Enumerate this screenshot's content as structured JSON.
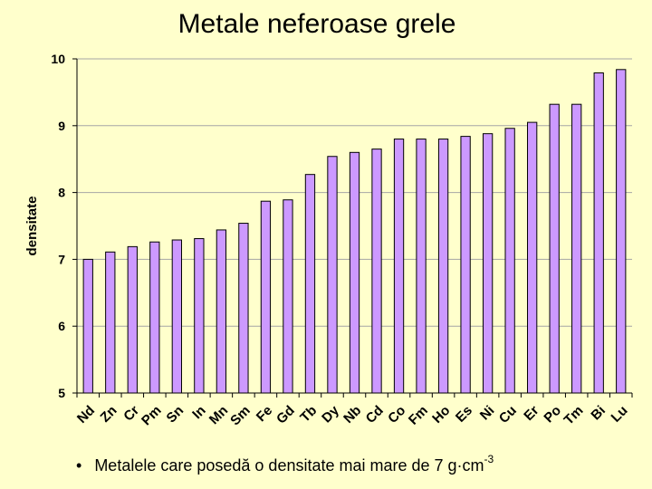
{
  "slide": {
    "title": "Metale neferoase grele",
    "bullet_symbol": "•",
    "bullet_text": "Metalele care posedă o densitate mai mare de 7 g·cm",
    "bullet_superscript": "-3"
  },
  "chart_data": {
    "type": "bar",
    "title": "",
    "xlabel": "",
    "ylabel": "densitate",
    "ylim": [
      5,
      10
    ],
    "yticks": [
      5,
      6,
      7,
      8,
      9,
      10
    ],
    "grid": true,
    "bar_color": "#cc99ff",
    "bar_edge_color": "#000000",
    "categories": [
      "Nd",
      "Zn",
      "Cr",
      "Pm",
      "Sn",
      "In",
      "Mn",
      "Sm",
      "Fe",
      "Gd",
      "Tb",
      "Dy",
      "Nb",
      "Cd",
      "Co",
      "Fm",
      "Ho",
      "Es",
      "Ni",
      "Cu",
      "Er",
      "Po",
      "Tm",
      "Bi",
      "Lu"
    ],
    "values": [
      7.0,
      7.11,
      7.19,
      7.26,
      7.29,
      7.31,
      7.44,
      7.54,
      7.87,
      7.89,
      8.27,
      8.54,
      8.6,
      8.65,
      8.8,
      8.8,
      8.8,
      8.84,
      8.88,
      8.96,
      9.05,
      9.32,
      9.32,
      9.79,
      9.84
    ]
  }
}
